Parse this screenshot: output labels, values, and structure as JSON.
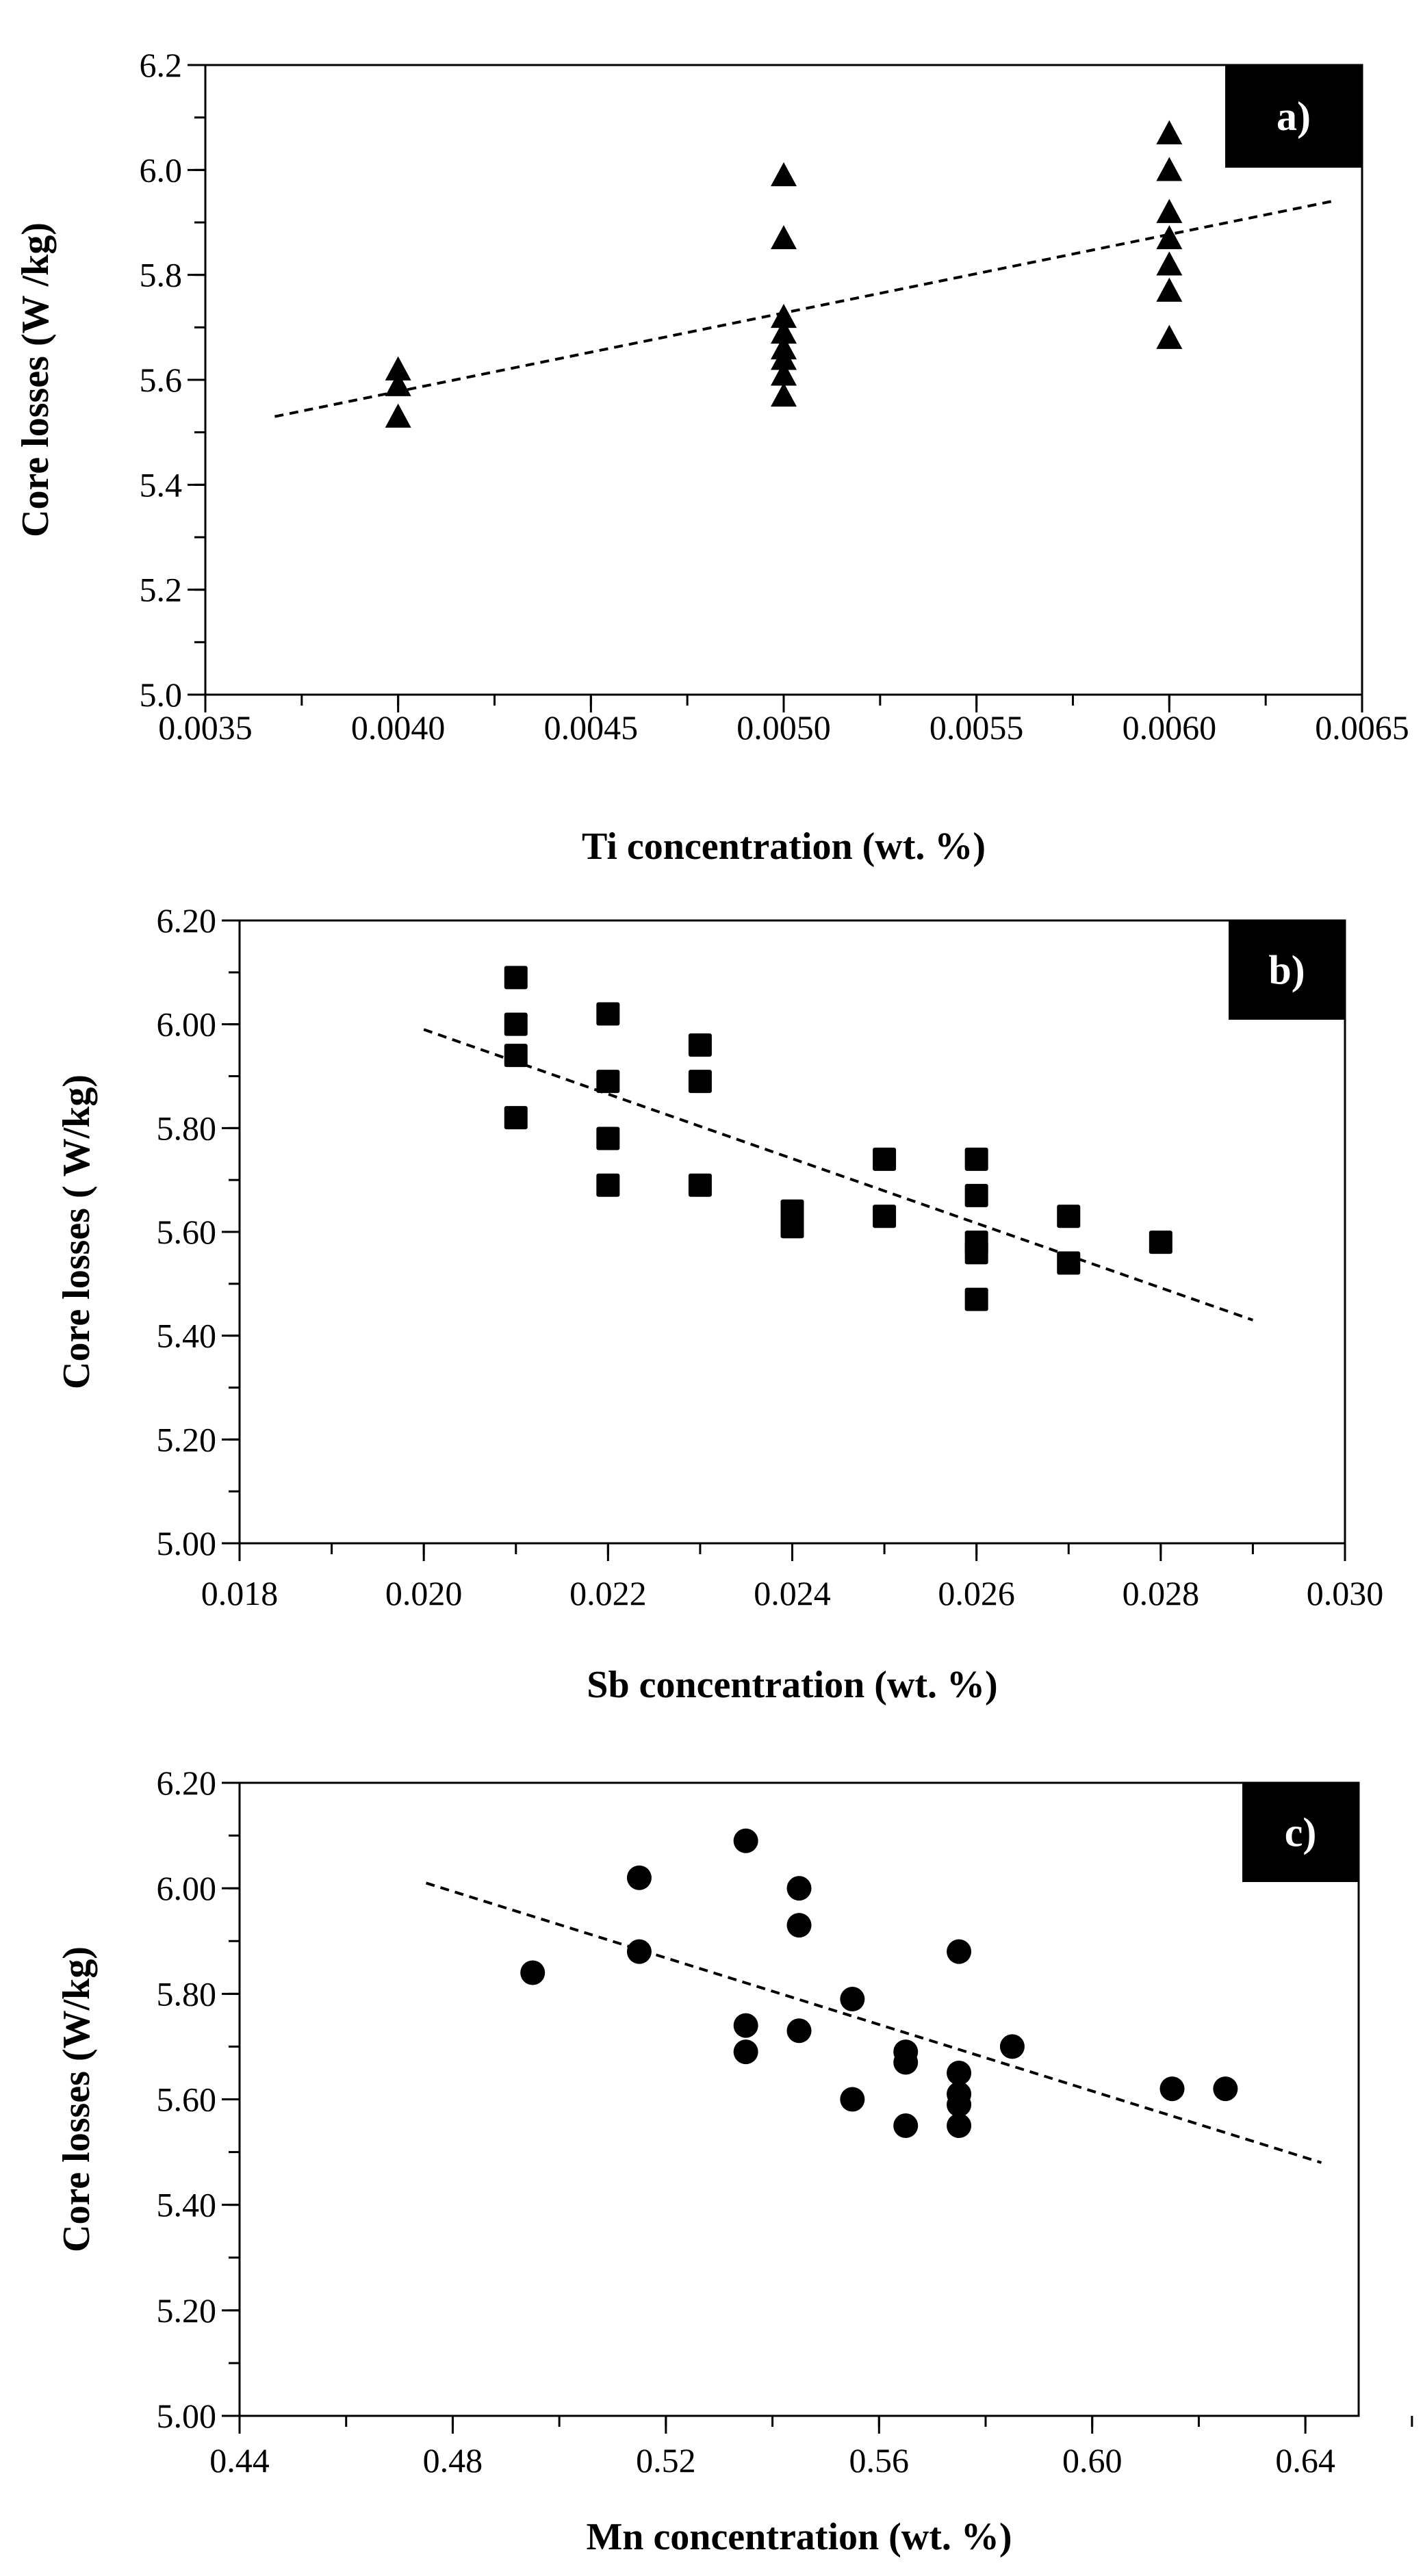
{
  "chart_data": [
    {
      "id": "a",
      "type": "scatter",
      "panel_label": "a)",
      "marker": "triangle",
      "xlabel": "Ti concentration (wt. %)",
      "ylabel": "Core losses (W /kg)",
      "xlim": [
        0.0035,
        0.0065
      ],
      "ylim": [
        5.0,
        6.2
      ],
      "xticks": [
        0.0035,
        0.004,
        0.0045,
        0.005,
        0.0055,
        0.006,
        0.0065
      ],
      "xtick_labels": [
        "0.0035",
        "0.0040",
        "0.0045",
        "0.0050",
        "0.0055",
        "0.0060",
        "0.0065"
      ],
      "yticks": [
        5.0,
        5.2,
        5.4,
        5.6,
        5.8,
        6.0,
        6.2
      ],
      "ytick_labels": [
        "5.0",
        "5.2",
        "5.4",
        "5.6",
        "5.8",
        "6.0",
        "6.2"
      ],
      "x_minor_step": 0.00025,
      "y_minor_step": 0.1,
      "points": [
        [
          0.004,
          5.62
        ],
        [
          0.004,
          5.59
        ],
        [
          0.004,
          5.53
        ],
        [
          0.005,
          5.99
        ],
        [
          0.005,
          5.87
        ],
        [
          0.005,
          5.72
        ],
        [
          0.005,
          5.69
        ],
        [
          0.005,
          5.66
        ],
        [
          0.005,
          5.64
        ],
        [
          0.005,
          5.61
        ],
        [
          0.005,
          5.57
        ],
        [
          0.006,
          6.07
        ],
        [
          0.006,
          6.0
        ],
        [
          0.006,
          5.92
        ],
        [
          0.006,
          5.87
        ],
        [
          0.006,
          5.82
        ],
        [
          0.006,
          5.77
        ],
        [
          0.006,
          5.68
        ]
      ],
      "trendline": {
        "x": [
          0.00368,
          0.00642
        ],
        "y": [
          5.53,
          5.94
        ],
        "style": "dashed"
      }
    },
    {
      "id": "b",
      "type": "scatter",
      "panel_label": "b)",
      "marker": "square",
      "xlabel": "Sb concentration (wt. %)",
      "ylabel": "Core losses ( W/kg)",
      "xlim": [
        0.018,
        0.03
      ],
      "ylim": [
        5.0,
        6.2
      ],
      "xticks": [
        0.018,
        0.02,
        0.022,
        0.024,
        0.026,
        0.028,
        0.03
      ],
      "xtick_labels": [
        "0.018",
        "0.020",
        "0.022",
        "0.024",
        "0.026",
        "0.028",
        "0.030"
      ],
      "yticks": [
        5.0,
        5.2,
        5.4,
        5.6,
        5.8,
        6.0,
        6.2
      ],
      "ytick_labels": [
        "5.00",
        "5.20",
        "5.40",
        "5.60",
        "5.80",
        "6.00",
        "6.20"
      ],
      "x_minor_step": 0.001,
      "y_minor_step": 0.1,
      "points": [
        [
          0.021,
          6.09
        ],
        [
          0.021,
          6.0
        ],
        [
          0.021,
          5.94
        ],
        [
          0.021,
          5.82
        ],
        [
          0.022,
          6.02
        ],
        [
          0.022,
          5.89
        ],
        [
          0.022,
          5.78
        ],
        [
          0.022,
          5.69
        ],
        [
          0.023,
          5.96
        ],
        [
          0.023,
          5.89
        ],
        [
          0.023,
          5.69
        ],
        [
          0.024,
          5.64
        ],
        [
          0.024,
          5.61
        ],
        [
          0.025,
          5.74
        ],
        [
          0.025,
          5.63
        ],
        [
          0.026,
          5.74
        ],
        [
          0.026,
          5.67
        ],
        [
          0.026,
          5.58
        ],
        [
          0.026,
          5.56
        ],
        [
          0.026,
          5.47
        ],
        [
          0.027,
          5.63
        ],
        [
          0.027,
          5.54
        ],
        [
          0.028,
          5.58
        ]
      ],
      "trendline": {
        "x": [
          0.02,
          0.029
        ],
        "y": [
          5.99,
          5.43
        ],
        "style": "dashed"
      }
    },
    {
      "id": "c",
      "type": "scatter",
      "panel_label": "c)",
      "marker": "circle",
      "xlabel": "Mn concentration (wt. %)",
      "ylabel": "Core losses (W/kg)",
      "xlim": [
        0.44,
        0.65
      ],
      "ylim": [
        5.0,
        6.2
      ],
      "xticks": [
        0.44,
        0.48,
        0.52,
        0.56,
        0.6,
        0.64
      ],
      "xtick_labels": [
        "0.44",
        "0.48",
        "0.52",
        "0.56",
        "0.60",
        "0.64"
      ],
      "yticks": [
        5.0,
        5.2,
        5.4,
        5.6,
        5.8,
        6.0,
        6.2
      ],
      "ytick_labels": [
        "5.00",
        "5.20",
        "5.40",
        "5.60",
        "5.80",
        "6.00",
        "6.20"
      ],
      "x_minor_step": 0.02,
      "y_minor_step": 0.1,
      "points": [
        [
          0.495,
          5.84
        ],
        [
          0.515,
          6.02
        ],
        [
          0.515,
          5.88
        ],
        [
          0.535,
          6.09
        ],
        [
          0.535,
          5.74
        ],
        [
          0.535,
          5.69
        ],
        [
          0.545,
          6.0
        ],
        [
          0.545,
          5.93
        ],
        [
          0.545,
          5.73
        ],
        [
          0.555,
          5.79
        ],
        [
          0.555,
          5.6
        ],
        [
          0.565,
          5.69
        ],
        [
          0.565,
          5.67
        ],
        [
          0.565,
          5.55
        ],
        [
          0.575,
          5.88
        ],
        [
          0.575,
          5.65
        ],
        [
          0.575,
          5.61
        ],
        [
          0.575,
          5.59
        ],
        [
          0.575,
          5.55
        ],
        [
          0.585,
          5.7
        ],
        [
          0.615,
          5.62
        ],
        [
          0.625,
          5.62
        ]
      ],
      "trendline": {
        "x": [
          0.475,
          0.643
        ],
        "y": [
          6.01,
          5.48
        ],
        "style": "dashed"
      }
    }
  ]
}
